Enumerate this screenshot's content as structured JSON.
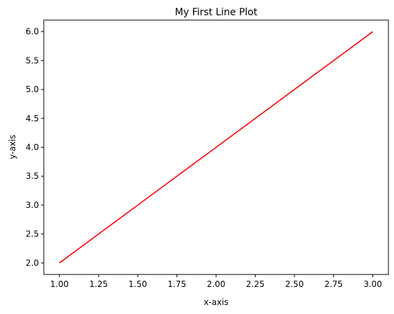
{
  "chart_data": {
    "type": "line",
    "title": "My First Line Plot",
    "xlabel": "x-axis",
    "ylabel": "y-axis",
    "xlim": [
      0.9,
      3.1
    ],
    "ylim": [
      1.8,
      6.2
    ],
    "x_ticks": [
      "1.00",
      "1.25",
      "1.50",
      "1.75",
      "2.00",
      "2.25",
      "2.50",
      "2.75",
      "3.00"
    ],
    "y_ticks": [
      "2.0",
      "2.5",
      "3.0",
      "3.5",
      "4.0",
      "4.5",
      "5.0",
      "5.5",
      "6.0"
    ],
    "grid": false,
    "legend": "none",
    "series": [
      {
        "x": [
          1,
          2,
          3
        ],
        "y": [
          2,
          4,
          6
        ],
        "color": "#ff0000"
      }
    ]
  }
}
